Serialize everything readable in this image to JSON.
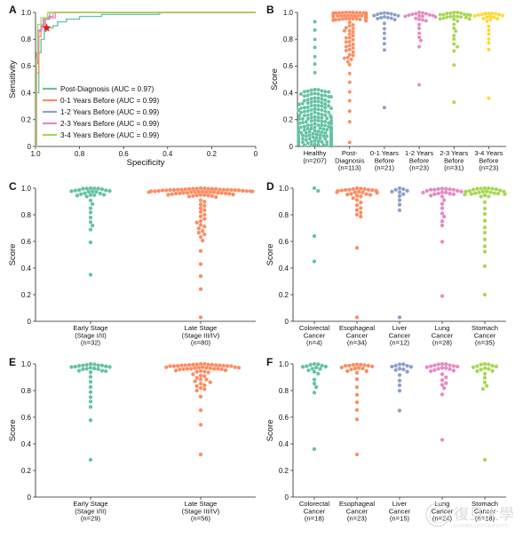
{
  "colors": {
    "group1": "#66c2a5",
    "group2": "#fc8d62",
    "group3": "#8da0cb",
    "group4": "#e78ac3",
    "group5": "#a6d854",
    "group6": "#ffd92f",
    "star": "#e41a1c"
  },
  "watermark": {
    "icon": "fudan-university-seal-icon",
    "text": "復旦大學",
    "sub": "FUDAN UNIVERSITY"
  },
  "chart_data": [
    {
      "id": "A",
      "letter": "A",
      "type": "line",
      "title": "",
      "xlabel": "Specificity",
      "ylabel": "Sensitivity",
      "xlim": [
        1.0,
        0.0
      ],
      "ylim": [
        0.0,
        1.0
      ],
      "x_ticks": [
        "1.0",
        "0.8",
        "0.6",
        "0.4",
        "0.2",
        "0"
      ],
      "y_ticks": [
        "0",
        "0.2",
        "0.4",
        "0.6",
        "0.8",
        "1.0"
      ],
      "legend_position": "bottom-left",
      "optimal_point": {
        "specificity": 0.95,
        "sensitivity": 0.885,
        "marker": "star"
      },
      "series": [
        {
          "name": "Post-Diagnosis (AUC = 0.97)",
          "color_key": "group1",
          "points": [
            [
              1.0,
              0.0
            ],
            [
              0.995,
              0.4
            ],
            [
              0.985,
              0.7
            ],
            [
              0.975,
              0.8
            ],
            [
              0.96,
              0.86
            ],
            [
              0.95,
              0.885
            ],
            [
              0.92,
              0.9
            ],
            [
              0.9,
              0.93
            ],
            [
              0.86,
              0.95
            ],
            [
              0.8,
              0.97
            ],
            [
              0.7,
              0.985
            ],
            [
              0.44,
              0.995
            ],
            [
              0.43,
              1.0
            ],
            [
              0.0,
              1.0
            ]
          ]
        },
        {
          "name": "0-1 Years Before (AUC = 0.99)",
          "color_key": "group2",
          "points": [
            [
              1.0,
              0.0
            ],
            [
              0.995,
              0.55
            ],
            [
              0.985,
              0.82
            ],
            [
              0.975,
              0.9
            ],
            [
              0.96,
              0.95
            ],
            [
              0.94,
              0.97
            ],
            [
              0.92,
              1.0
            ],
            [
              0.0,
              1.0
            ]
          ]
        },
        {
          "name": "1-2 Years Before (AUC = 0.99)",
          "color_key": "group3",
          "points": [
            [
              1.0,
              0.0
            ],
            [
              0.995,
              0.62
            ],
            [
              0.99,
              0.86
            ],
            [
              0.975,
              0.9
            ],
            [
              0.965,
              0.95
            ],
            [
              0.94,
              0.95
            ],
            [
              0.935,
              1.0
            ],
            [
              0.0,
              1.0
            ]
          ]
        },
        {
          "name": "2-3 Years Before (AUC = 0.99)",
          "color_key": "group4",
          "points": [
            [
              1.0,
              0.0
            ],
            [
              0.995,
              0.7
            ],
            [
              0.985,
              0.87
            ],
            [
              0.97,
              0.91
            ],
            [
              0.955,
              0.96
            ],
            [
              0.93,
              0.96
            ],
            [
              0.91,
              1.0
            ],
            [
              0.0,
              1.0
            ]
          ]
        },
        {
          "name": "3-4 Years Before (AUC = 0.99)",
          "color_key": "group5",
          "points": [
            [
              1.0,
              0.0
            ],
            [
              0.997,
              0.65
            ],
            [
              0.99,
              0.91
            ],
            [
              0.975,
              0.96
            ],
            [
              0.95,
              0.96
            ],
            [
              0.945,
              1.0
            ],
            [
              0.0,
              1.0
            ]
          ]
        }
      ]
    },
    {
      "id": "B",
      "letter": "B",
      "type": "scatter",
      "title": "",
      "xlabel": "",
      "ylabel": "Score",
      "ylim": [
        0.0,
        1.0
      ],
      "y_ticks": [
        "0",
        "0.2",
        "0.4",
        "0.6",
        "0.8",
        "1.0"
      ],
      "categories": [
        {
          "lines": [
            "Healthy",
            "(n=207)"
          ],
          "color_key": "group1",
          "n": 207,
          "profile": "low"
        },
        {
          "lines": [
            "Post-",
            "Diagnosis",
            "(n=113)"
          ],
          "color_key": "group2",
          "n": 113,
          "profile": "high",
          "min": 0.03,
          "q1": 0.63
        },
        {
          "lines": [
            "0-1 Years",
            "Before",
            "(n=21)"
          ],
          "color_key": "group3",
          "n": 21,
          "profile": "high",
          "min": 0.29,
          "q1": 0.72
        },
        {
          "lines": [
            "1-2 Years",
            "Before",
            "(n=23)"
          ],
          "color_key": "group4",
          "n": 23,
          "profile": "high",
          "min": 0.46,
          "q1": 0.76
        },
        {
          "lines": [
            "2-3 Years",
            "Before",
            "(n=31)"
          ],
          "color_key": "group5",
          "n": 31,
          "profile": "high",
          "min": 0.33,
          "q1": 0.7
        },
        {
          "lines": [
            "3-4 Years",
            "Before",
            "(n=23)"
          ],
          "color_key": "group6",
          "n": 23,
          "profile": "high",
          "min": 0.36,
          "q1": 0.74
        }
      ]
    },
    {
      "id": "C",
      "letter": "C",
      "type": "scatter",
      "title": "",
      "xlabel": "",
      "ylabel": "Score",
      "ylim": [
        0.0,
        1.0
      ],
      "y_ticks": [
        "0",
        "0.2",
        "0.4",
        "0.6",
        "0.8",
        "1.0"
      ],
      "categories": [
        {
          "lines": [
            "Early Stage",
            "(Stage I/II)",
            "(n=32)"
          ],
          "color_key": "group1",
          "n": 32,
          "profile": "high",
          "min": 0.35,
          "q1": 0.68
        },
        {
          "lines": [
            "Late Stage",
            "(Stage III/IV)",
            "(n=80)"
          ],
          "color_key": "group2",
          "n": 80,
          "profile": "high",
          "min": 0.03,
          "q1": 0.62
        }
      ]
    },
    {
      "id": "D",
      "letter": "D",
      "type": "scatter",
      "title": "",
      "xlabel": "",
      "ylabel": "Score",
      "ylim": [
        0.0,
        1.0
      ],
      "y_ticks": [
        "0",
        "0.2",
        "0.4",
        "0.6",
        "0.8",
        "1.0"
      ],
      "categories": [
        {
          "lines": [
            "Colorectal",
            "Cancer",
            "(n=4)"
          ],
          "color_key": "group1",
          "n": 4,
          "profile": "fixed",
          "values": [
            1.0,
            0.98,
            0.64,
            0.45
          ]
        },
        {
          "lines": [
            "Esophageal",
            "Cancer",
            "(n=34)"
          ],
          "color_key": "group2",
          "n": 34,
          "profile": "high",
          "min": 0.03,
          "q1": 0.78
        },
        {
          "lines": [
            "Liver",
            "Cancer",
            "(n=12)"
          ],
          "color_key": "group3",
          "n": 12,
          "profile": "high",
          "min": 0.03,
          "q1": 0.8
        },
        {
          "lines": [
            "Lung",
            "Cancer",
            "(n=28)"
          ],
          "color_key": "group4",
          "n": 28,
          "profile": "high",
          "min": 0.19,
          "q1": 0.7
        },
        {
          "lines": [
            "Stomach",
            "Cancer",
            "(n=35)"
          ],
          "color_key": "group5",
          "n": 35,
          "profile": "high",
          "min": 0.2,
          "q1": 0.52
        }
      ]
    },
    {
      "id": "E",
      "letter": "E",
      "type": "scatter",
      "title": "",
      "xlabel": "",
      "ylabel": "Score",
      "ylim": [
        0.0,
        1.0
      ],
      "y_ticks": [
        "0",
        "0.2",
        "0.4",
        "0.6",
        "0.8",
        "1.0"
      ],
      "categories": [
        {
          "lines": [
            "Early Stage",
            "(Stage I/II)",
            "(n=29)"
          ],
          "color_key": "group1",
          "n": 29,
          "profile": "high",
          "min": 0.28,
          "q1": 0.66
        },
        {
          "lines": [
            "Late Stage",
            "(Stage III/IV)",
            "(n=56)"
          ],
          "color_key": "group2",
          "n": 56,
          "profile": "high",
          "min": 0.32,
          "q1": 0.8
        }
      ]
    },
    {
      "id": "F",
      "letter": "F",
      "type": "scatter",
      "title": "",
      "xlabel": "",
      "ylabel": "Score",
      "ylim": [
        0.0,
        1.0
      ],
      "y_ticks": [
        "0",
        "0.2",
        "0.4",
        "0.6",
        "0.8",
        "1.0"
      ],
      "categories": [
        {
          "lines": [
            "Colorectal",
            "Cancer",
            "(n=18)"
          ],
          "color_key": "group1",
          "n": 18,
          "profile": "high",
          "min": 0.36,
          "q1": 0.78
        },
        {
          "lines": [
            "Esophageal",
            "Cancer",
            "(n=23)"
          ],
          "color_key": "group2",
          "n": 23,
          "profile": "high",
          "min": 0.32,
          "q1": 0.6
        },
        {
          "lines": [
            "Liver",
            "Cancer",
            "(n=15)"
          ],
          "color_key": "group3",
          "n": 15,
          "profile": "high",
          "min": 0.65,
          "q1": 0.78
        },
        {
          "lines": [
            "Lung",
            "Cancer",
            "(n=24)"
          ],
          "color_key": "group4",
          "n": 24,
          "profile": "high",
          "min": 0.43,
          "q1": 0.8
        },
        {
          "lines": [
            "Stomach",
            "Cancer",
            "(n=18)"
          ],
          "color_key": "group5",
          "n": 18,
          "profile": "high",
          "min": 0.28,
          "q1": 0.8
        }
      ]
    }
  ]
}
